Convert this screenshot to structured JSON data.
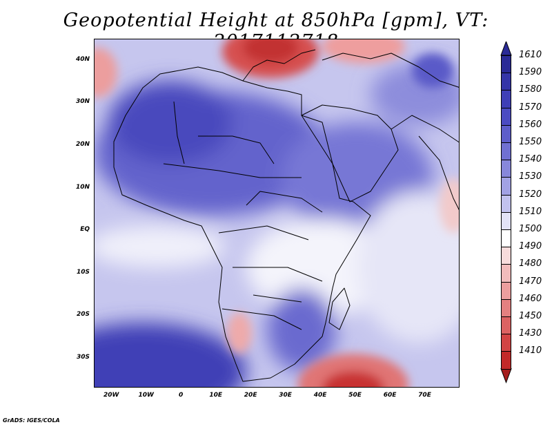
{
  "title": "Geopotential Height at 850hPa [gpm], VT: 2017112718",
  "footer": "GrADS: IGES/COLA",
  "map": {
    "lon_range": [
      -25,
      80
    ],
    "lat_range": [
      -37,
      45
    ],
    "lat_labels": [
      {
        "lat": 40,
        "text": "40N"
      },
      {
        "lat": 30,
        "text": "30N"
      },
      {
        "lat": 20,
        "text": "20N"
      },
      {
        "lat": 10,
        "text": "10N"
      },
      {
        "lat": 0,
        "text": "EQ"
      },
      {
        "lat": -10,
        "text": "10S"
      },
      {
        "lat": -20,
        "text": "20S"
      },
      {
        "lat": -30,
        "text": "30S"
      }
    ],
    "lon_labels": [
      {
        "lon": -20,
        "text": "20W"
      },
      {
        "lon": -10,
        "text": "10W"
      },
      {
        "lon": 0,
        "text": "0"
      },
      {
        "lon": 10,
        "text": "10E"
      },
      {
        "lon": 20,
        "text": "20E"
      },
      {
        "lon": 30,
        "text": "30E"
      },
      {
        "lon": 40,
        "text": "40E"
      },
      {
        "lon": 50,
        "text": "50E"
      },
      {
        "lon": 60,
        "text": "60E"
      },
      {
        "lon": 70,
        "text": "70E"
      }
    ]
  },
  "colorbar": {
    "levels": [
      {
        "label": "1610",
        "color": "#2a2a96"
      },
      {
        "label": "1590",
        "color": "#3535a8"
      },
      {
        "label": "1580",
        "color": "#3f3fb7"
      },
      {
        "label": "1570",
        "color": "#4b4bc2"
      },
      {
        "label": "1560",
        "color": "#5d5dca"
      },
      {
        "label": "1550",
        "color": "#7070d2"
      },
      {
        "label": "1540",
        "color": "#8787da"
      },
      {
        "label": "1530",
        "color": "#a2a2e4"
      },
      {
        "label": "1520",
        "color": "#c2c2ee"
      },
      {
        "label": "1510",
        "color": "#e2e2f6"
      },
      {
        "label": "1500",
        "color": "#ffffff"
      },
      {
        "label": "1490",
        "color": "#f8dcdc"
      },
      {
        "label": "1480",
        "color": "#f2bcbc"
      },
      {
        "label": "1470",
        "color": "#ec9e9e"
      },
      {
        "label": "1460",
        "color": "#e48080"
      },
      {
        "label": "1450",
        "color": "#dc6262"
      },
      {
        "label": "1430",
        "color": "#d24444"
      },
      {
        "label": "1410",
        "color": "#c22828"
      }
    ],
    "below_color": "#a51e1e"
  }
}
